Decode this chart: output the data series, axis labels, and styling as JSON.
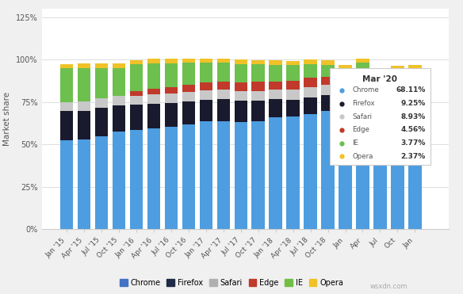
{
  "x_labels": [
    "Jan '15",
    "Apr '15",
    "Jul '15",
    "Oct '15",
    "Jan '16",
    "Apr '16",
    "Jul '16",
    "Oct '16",
    "Jan '17",
    "Apr '17",
    "Jul '17",
    "Oct '17",
    "Jan '18",
    "Apr '18",
    "Jul '18",
    "Oct '18",
    "Jan",
    "Apr",
    "Jul",
    "Oct",
    "Jan"
  ],
  "chrome": [
    52.41,
    53.18,
    54.94,
    57.42,
    58.53,
    59.34,
    60.23,
    61.87,
    63.49,
    63.72,
    63.42,
    63.54,
    66.11,
    66.32,
    68.07,
    69.56,
    68.11,
    71.34,
    65.23,
    67.45,
    68.11
  ],
  "firefox": [
    17.29,
    16.68,
    16.64,
    15.82,
    14.85,
    14.83,
    14.4,
    13.62,
    13.03,
    12.93,
    12.56,
    12.31,
    10.55,
    10.15,
    9.55,
    9.64,
    9.25,
    8.92,
    9.1,
    8.75,
    9.25
  ],
  "safari": [
    5.43,
    5.61,
    5.64,
    5.3,
    5.4,
    5.44,
    5.61,
    5.65,
    5.64,
    5.72,
    5.59,
    5.73,
    5.74,
    5.9,
    6.14,
    6.09,
    8.93,
    6.23,
    6.4,
    6.15,
    8.93
  ],
  "edge": [
    0.0,
    0.0,
    0.0,
    0.0,
    2.85,
    3.49,
    3.74,
    4.09,
    4.52,
    4.77,
    4.89,
    5.3,
    4.85,
    5.12,
    5.43,
    4.57,
    4.56,
    4.5,
    4.6,
    4.7,
    4.56
  ],
  "ie": [
    19.73,
    19.73,
    17.99,
    16.7,
    15.67,
    14.73,
    13.81,
    12.92,
    11.6,
    10.97,
    11.08,
    10.47,
    9.8,
    9.2,
    8.31,
    7.25,
    3.77,
    7.2,
    6.8,
    7.0,
    3.77
  ],
  "opera": [
    2.41,
    2.51,
    2.58,
    2.63,
    2.54,
    2.63,
    2.63,
    2.6,
    2.44,
    2.45,
    2.52,
    2.55,
    2.67,
    2.63,
    2.52,
    2.51,
    2.37,
    2.39,
    2.43,
    2.41,
    2.37
  ],
  "colors": {
    "chrome": "#4d9de0",
    "firefox": "#1a1a2e",
    "safari": "#c8c8c8",
    "edge": "#c0392b",
    "ie": "#6dbf4e",
    "opera": "#f0c228"
  },
  "legend_colors": {
    "chrome": "#4472c4",
    "firefox": "#1f2a44",
    "safari": "#b0b0b0",
    "edge": "#c0392b",
    "ie": "#70bf44",
    "opera": "#f0c228"
  },
  "ylabel": "Market share",
  "yticks": [
    0,
    25,
    50,
    75,
    100,
    125
  ],
  "ylim": [
    0,
    130
  ],
  "annotation_title": "Mar '20",
  "annotation_data": {
    "Chrome": "68.11%",
    "Firefox": "9.25%",
    "Safari": "8.93%",
    "Edge": "4.56%",
    "IE": "3.77%",
    "Opera": "2.37%"
  },
  "bg_color": "#f0f0f0",
  "plot_bg": "#ffffff",
  "watermark": "wsxdn.com"
}
